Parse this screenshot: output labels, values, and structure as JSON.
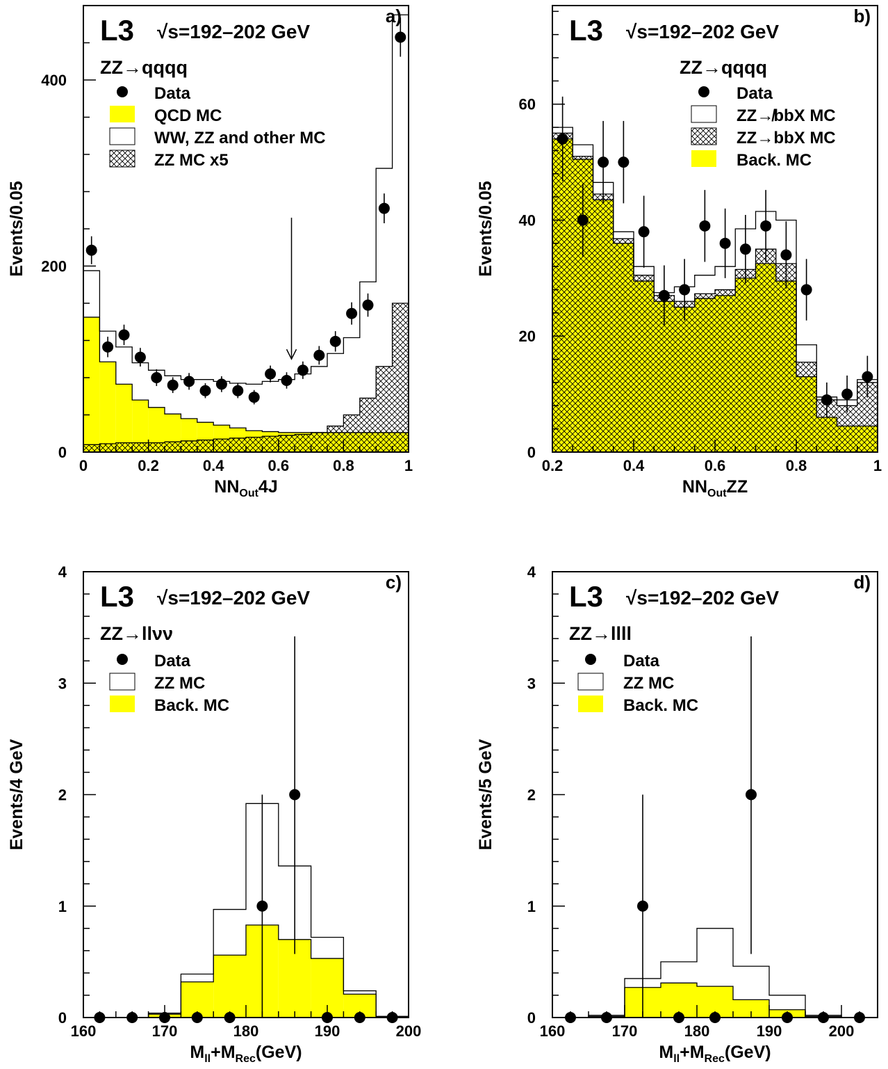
{
  "colors": {
    "background_mc": "#ffff00",
    "outline": "#000000",
    "background": "#ffffff"
  },
  "chart_data": [
    {
      "id": "a",
      "type": "bar",
      "panel_label": "a)",
      "experiment": "L3",
      "energy": "√s=192–202 GeV",
      "process": "ZZ→qqqq",
      "xlabel_main": "NN",
      "xlabel_sub": "Out",
      "xlabel_tail": "4J",
      "ylabel": "Events/0.05",
      "xlim": [
        0,
        1
      ],
      "ylim": [
        0,
        480
      ],
      "xticks": [
        {
          "v": 0,
          "l": "0"
        },
        {
          "v": 0.2,
          "l": "0.2"
        },
        {
          "v": 0.4,
          "l": "0.4"
        },
        {
          "v": 0.6,
          "l": "0.6"
        },
        {
          "v": 0.8,
          "l": "0.8"
        },
        {
          "v": 1,
          "l": "1"
        }
      ],
      "yticks": [
        {
          "v": 0,
          "l": "0"
        },
        {
          "v": 200,
          "l": "200"
        },
        {
          "v": 400,
          "l": "400"
        }
      ],
      "xminor": 0.05,
      "yminor": 40,
      "bin_edges": [
        0,
        0.05,
        0.1,
        0.15,
        0.2,
        0.25,
        0.3,
        0.35,
        0.4,
        0.45,
        0.5,
        0.55,
        0.6,
        0.65,
        0.7,
        0.75,
        0.8,
        0.85,
        0.9,
        0.95,
        1.0
      ],
      "legend": [
        {
          "kind": "marker",
          "label": "Data"
        },
        {
          "kind": "yellow",
          "label": "QCD MC"
        },
        {
          "kind": "open",
          "label": "WW, ZZ and other MC"
        },
        {
          "kind": "hatch",
          "label": "ZZ MC x5"
        }
      ],
      "stack": [
        {
          "name": "QCD MC",
          "style": "yellow",
          "values": [
            145,
            97,
            73,
            56,
            48,
            41,
            36,
            32,
            29,
            26,
            23,
            22,
            21,
            21,
            21,
            21,
            21,
            21,
            21,
            21
          ]
        },
        {
          "name": "WW, ZZ and other MC",
          "style": "open",
          "values": [
            195,
            130,
            113,
            96,
            88,
            82,
            78,
            78,
            76,
            74,
            73,
            76,
            78,
            84,
            92,
            106,
            123,
            183,
            305,
            470
          ]
        },
        {
          "name": "ZZ MC x5",
          "style": "hatch",
          "values": [
            8,
            9,
            10,
            10,
            10,
            11,
            12,
            13,
            14,
            15,
            16,
            17,
            18,
            19,
            21,
            28,
            40,
            58,
            92,
            160
          ]
        }
      ],
      "data": {
        "x": [
          0.025,
          0.075,
          0.125,
          0.175,
          0.225,
          0.275,
          0.325,
          0.375,
          0.425,
          0.475,
          0.525,
          0.575,
          0.625,
          0.675,
          0.725,
          0.775,
          0.825,
          0.875,
          0.925,
          0.975
        ],
        "y": [
          217,
          113,
          126,
          102,
          80,
          72,
          76,
          66,
          73,
          66,
          59,
          84,
          77,
          88,
          104,
          119,
          149,
          158,
          262,
          446
        ],
        "err": [
          15,
          11,
          11,
          10,
          9,
          8.5,
          9,
          8,
          8.5,
          8,
          7.7,
          9,
          8.8,
          9.4,
          10,
          11,
          12,
          12.5,
          16,
          21
        ]
      },
      "arrow": {
        "x": 0.64,
        "y_top": 252,
        "y_bottom": 100
      }
    },
    {
      "id": "b",
      "type": "bar",
      "panel_label": "b)",
      "experiment": "L3",
      "energy": "√s=192–202 GeV",
      "process": "ZZ→qqqq",
      "xlabel_main": "NN",
      "xlabel_sub": "Out",
      "xlabel_tail": "ZZ",
      "ylabel": "Events/0.05",
      "xlim": [
        0.2,
        1.0
      ],
      "ylim": [
        0,
        77
      ],
      "xticks": [
        {
          "v": 0.2,
          "l": "0.2"
        },
        {
          "v": 0.4,
          "l": "0.4"
        },
        {
          "v": 0.6,
          "l": "0.6"
        },
        {
          "v": 0.8,
          "l": "0.8"
        },
        {
          "v": 1,
          "l": "1"
        }
      ],
      "yticks": [
        {
          "v": 0,
          "l": "0"
        },
        {
          "v": 20,
          "l": "20"
        },
        {
          "v": 40,
          "l": "40"
        },
        {
          "v": 60,
          "l": "60"
        }
      ],
      "xminor": 0.05,
      "yminor": 4,
      "bin_edges": [
        0.2,
        0.25,
        0.3,
        0.35,
        0.4,
        0.45,
        0.5,
        0.55,
        0.6,
        0.65,
        0.7,
        0.75,
        0.8,
        0.85,
        0.9,
        0.95,
        1.0
      ],
      "legend": [
        {
          "kind": "marker",
          "label": "Data"
        },
        {
          "kind": "open",
          "label": "ZZ↛bbX MC"
        },
        {
          "kind": "hatch",
          "label": "ZZ→bbX MC"
        },
        {
          "kind": "yellow",
          "label": "Back. MC"
        }
      ],
      "stack": [
        {
          "name": "Back. MC",
          "style": "yellow",
          "values": [
            54,
            50.5,
            43.5,
            36,
            29.5,
            26,
            25,
            26.5,
            27,
            30,
            32.5,
            29.5,
            13,
            6,
            4.5,
            4.5
          ]
        },
        {
          "name": "ZZ→bbX MC",
          "style": "hatch",
          "values": [
            55,
            51,
            44.5,
            36.8,
            30.5,
            27,
            26,
            27.3,
            28,
            31.5,
            35,
            32.5,
            15.5,
            9,
            8,
            12
          ]
        },
        {
          "name": "ZZ↛bbX MC",
          "style": "open",
          "values": [
            56,
            53,
            46.5,
            38,
            32,
            27.5,
            28.5,
            30.5,
            32,
            38.5,
            41.5,
            40,
            18.5,
            9.5,
            9,
            12.5
          ]
        }
      ],
      "data": {
        "x": [
          0.225,
          0.275,
          0.325,
          0.375,
          0.425,
          0.475,
          0.525,
          0.575,
          0.625,
          0.675,
          0.725,
          0.775,
          0.825,
          0.875,
          0.925,
          0.975
        ],
        "y": [
          54,
          40,
          50,
          50,
          38,
          27,
          28,
          39,
          36,
          35,
          39,
          34,
          28,
          9,
          10,
          13
        ],
        "err": [
          7.3,
          6.3,
          7.1,
          7.1,
          6.2,
          5.2,
          5.3,
          6.2,
          6.0,
          5.9,
          6.2,
          5.8,
          5.3,
          3,
          3.2,
          3.6
        ]
      }
    },
    {
      "id": "c",
      "type": "bar",
      "panel_label": "c)",
      "experiment": "L3",
      "energy": "√s=192–202 GeV",
      "process": "ZZ→llνν",
      "xlabel_main": "M",
      "xlabel_sub": "ll",
      "xlabel_mid": "+M",
      "xlabel_sub2": "Rec",
      "xlabel_tail": "(GeV)",
      "ylabel": "Events/4 GeV",
      "xlim": [
        160,
        200
      ],
      "ylim": [
        0,
        4
      ],
      "xticks": [
        {
          "v": 160,
          "l": "160"
        },
        {
          "v": 170,
          "l": "170"
        },
        {
          "v": 180,
          "l": "180"
        },
        {
          "v": 190,
          "l": "190"
        },
        {
          "v": 200,
          "l": "200"
        }
      ],
      "yticks": [
        {
          "v": 0,
          "l": "0"
        },
        {
          "v": 1,
          "l": "1"
        },
        {
          "v": 2,
          "l": "2"
        },
        {
          "v": 3,
          "l": "3"
        },
        {
          "v": 4,
          "l": "4"
        }
      ],
      "xminor": 2,
      "yminor": 0.2,
      "bin_edges": [
        160,
        164,
        168,
        172,
        176,
        180,
        184,
        188,
        192,
        196,
        200
      ],
      "legend": [
        {
          "kind": "marker",
          "label": "Data"
        },
        {
          "kind": "open",
          "label": "ZZ MC"
        },
        {
          "kind": "yellow",
          "label": "Back. MC"
        }
      ],
      "stack": [
        {
          "name": "Back. MC",
          "style": "yellow",
          "values": [
            0,
            0,
            0.03,
            0.32,
            0.56,
            0.83,
            0.7,
            0.53,
            0.21,
            0.01
          ]
        },
        {
          "name": "ZZ MC",
          "style": "open",
          "values": [
            0,
            0,
            0.04,
            0.39,
            0.97,
            1.92,
            1.36,
            0.72,
            0.24,
            0.01
          ]
        }
      ],
      "data": {
        "x": [
          162,
          166,
          170,
          174,
          178,
          182,
          186,
          190,
          194,
          198
        ],
        "y": [
          0,
          0,
          0,
          0,
          0,
          1,
          2,
          0,
          0,
          0
        ],
        "err_lo": [
          0,
          0,
          0,
          0,
          0,
          1,
          1.43,
          0,
          0,
          0
        ],
        "err_hi": [
          0,
          0,
          0.02,
          0,
          0,
          1,
          1.42,
          0,
          0,
          0
        ]
      }
    },
    {
      "id": "d",
      "type": "bar",
      "panel_label": "d)",
      "experiment": "L3",
      "energy": "√s=192–202 GeV",
      "process": "ZZ→llll",
      "xlabel_main": "M",
      "xlabel_sub": "ll",
      "xlabel_mid": "+M",
      "xlabel_sub2": "Rec",
      "xlabel_tail": "(GeV)",
      "ylabel": "Events/5 GeV",
      "xlim": [
        160,
        205
      ],
      "ylim": [
        0,
        4
      ],
      "xticks": [
        {
          "v": 160,
          "l": "160"
        },
        {
          "v": 170,
          "l": "170"
        },
        {
          "v": 180,
          "l": "180"
        },
        {
          "v": 190,
          "l": "190"
        },
        {
          "v": 200,
          "l": "200"
        }
      ],
      "yticks": [
        {
          "v": 0,
          "l": "0"
        },
        {
          "v": 1,
          "l": "1"
        },
        {
          "v": 2,
          "l": "2"
        },
        {
          "v": 3,
          "l": "3"
        },
        {
          "v": 4,
          "l": "4"
        }
      ],
      "xminor": 2.5,
      "yminor": 0.2,
      "bin_edges": [
        160,
        165,
        170,
        175,
        180,
        185,
        190,
        195,
        200,
        205
      ],
      "legend": [
        {
          "kind": "marker",
          "label": "Data"
        },
        {
          "kind": "open",
          "label": "ZZ MC"
        },
        {
          "kind": "yellow",
          "label": "Back. MC"
        }
      ],
      "stack": [
        {
          "name": "Back. MC",
          "style": "yellow",
          "values": [
            0,
            0.01,
            0.27,
            0.31,
            0.28,
            0.16,
            0.07,
            0.01,
            0
          ]
        },
        {
          "name": "ZZ MC",
          "style": "open",
          "values": [
            0,
            0.02,
            0.35,
            0.5,
            0.8,
            0.46,
            0.2,
            0.02,
            0
          ]
        }
      ],
      "data": {
        "x": [
          162.5,
          167.5,
          172.5,
          177.5,
          182.5,
          187.5,
          192.5,
          197.5,
          202.5
        ],
        "y": [
          0,
          0,
          1,
          0,
          0,
          2,
          0,
          0,
          0
        ],
        "err_lo": [
          0,
          0,
          1,
          0,
          0,
          1.43,
          0,
          0,
          0
        ],
        "err_hi": [
          0,
          0,
          1,
          0,
          0,
          1.42,
          0,
          0,
          0
        ]
      }
    }
  ]
}
